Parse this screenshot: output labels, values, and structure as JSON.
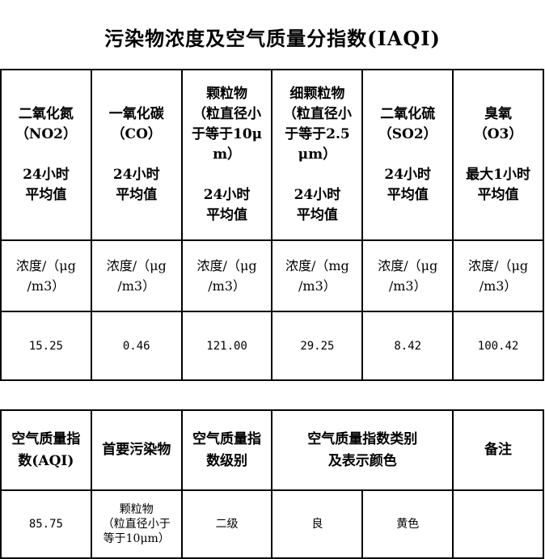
{
  "title": "污染物浓度及空气质量分指数(IAQI)",
  "pollutants": [
    {
      "name": [
        "二氧化氮",
        "（NO2）"
      ],
      "period": [
        "24小时",
        "平均值"
      ],
      "unit": [
        "浓度/（μg",
        "/m3）"
      ],
      "value": "15.25"
    },
    {
      "name": [
        "一氧化碳",
        "（CO）"
      ],
      "period": [
        "24小时",
        "平均值"
      ],
      "unit": [
        "浓度/（μg",
        "/m3）"
      ],
      "value": "0.46"
    },
    {
      "name": [
        "颗粒物",
        "（粒直径小",
        "于等于10μ",
        "m）"
      ],
      "period": [
        "24小时",
        "平均值"
      ],
      "unit": [
        "浓度/（μg",
        "/m3）"
      ],
      "value": "121.00"
    },
    {
      "name": [
        "细颗粒物",
        "（粒直径小",
        "于等于2.5",
        "μm）"
      ],
      "period": [
        "24小时",
        "平均值"
      ],
      "unit": [
        "浓度/（mg",
        "/m3）"
      ],
      "value": "29.25"
    },
    {
      "name": [
        "二氧化硫",
        "（SO2）"
      ],
      "period": [
        "24小时",
        "平均值"
      ],
      "unit": [
        "浓度/（μg",
        "/m3）"
      ],
      "value": "8.42"
    },
    {
      "name": [
        "臭氧",
        "（O3）"
      ],
      "period": [
        "最大1小时",
        "平均值"
      ],
      "unit": [
        "浓度/（μg",
        "/m3）"
      ],
      "value": "100.42"
    }
  ],
  "aqi_table": {
    "headers": {
      "aqi": [
        "空气质量指",
        "数(AQI)"
      ],
      "primary": [
        "首要污染物"
      ],
      "level": [
        "空气质量指",
        "数级别"
      ],
      "category": [
        "空气质量指数类别",
        "及表示颜色"
      ],
      "remark": [
        "备注"
      ]
    },
    "values": {
      "aqi": "85.75",
      "primary": [
        "颗粒物",
        "（粒直径小于",
        "等于10μm）"
      ],
      "level": "二级",
      "category": "良",
      "color": "黄色",
      "remark": ""
    }
  }
}
